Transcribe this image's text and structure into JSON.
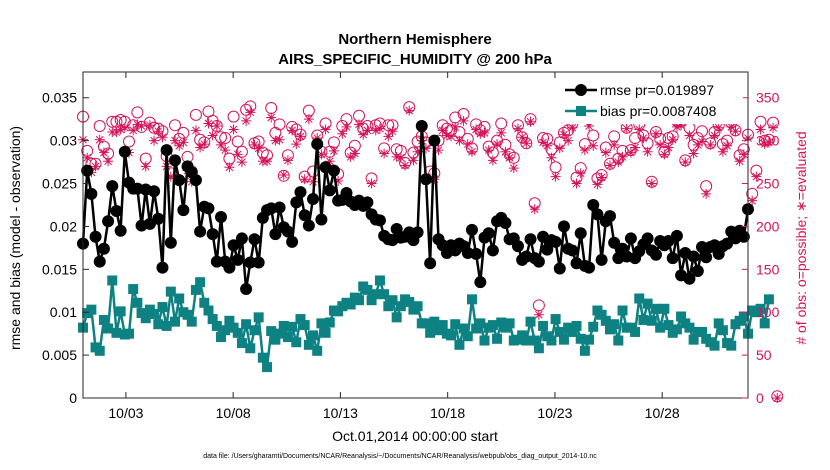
{
  "chart_data": {
    "type": "line",
    "title": "Northern Hemisphere",
    "subtitle": "AIRS_SPECIFIC_HUMIDITY @ 200 hPa",
    "xlabel": "Oct.01,2014 00:00:00 start",
    "ylabel": "rmse and bias (model - observation)",
    "y2label": "# of obs: o=possible; ∗=evaluated",
    "xlim": [
      1.0,
      32.0
    ],
    "ylim": [
      0,
      0.038
    ],
    "y2lim": [
      0,
      380
    ],
    "x_ticks": [
      3,
      8,
      13,
      18,
      23,
      28
    ],
    "x_tick_labels": [
      "10/03",
      "10/08",
      "10/13",
      "10/18",
      "10/23",
      "10/28"
    ],
    "y_ticks": [
      0,
      0.005,
      0.01,
      0.015,
      0.02,
      0.025,
      0.03,
      0.035
    ],
    "y_tick_labels": [
      "0",
      "0.005",
      "0.01",
      "0.015",
      "0.02",
      "0.025",
      "0.03",
      "0.035"
    ],
    "y2_ticks": [
      0,
      50,
      100,
      150,
      200,
      250,
      300,
      350
    ],
    "y2_tick_labels": [
      "0",
      "50",
      "100",
      "150",
      "200",
      "250",
      "300",
      "350"
    ],
    "legend_position": "top-right",
    "colors": {
      "rmse": "#000000",
      "bias": "#0e8282",
      "obs": "#d4145a"
    },
    "series": [
      {
        "name": "rmse pr=0.019897",
        "axis": "left",
        "marker": "circle",
        "values": [
          0.018,
          0.0265,
          0.0238,
          0.0188,
          0.0159,
          0.0174,
          0.0206,
          0.0247,
          0.0218,
          0.0195,
          0.0287,
          0.0251,
          0.0244,
          0.0244,
          0.0201,
          0.0243,
          0.0203,
          0.0241,
          0.0209,
          0.0152,
          0.0289,
          0.0181,
          0.0277,
          0.0254,
          0.0219,
          0.027,
          0.0263,
          0.0254,
          0.0194,
          0.0223,
          0.0221,
          0.0191,
          0.0159,
          0.0211,
          0.0159,
          0.0152,
          0.0178,
          0.0161,
          0.0186,
          0.0127,
          0.0158,
          0.0185,
          0.0158,
          0.021,
          0.0219,
          0.0221,
          0.0191,
          0.0222,
          0.0199,
          0.0194,
          0.0182,
          0.0228,
          0.024,
          0.0213,
          0.0201,
          0.0232,
          0.0296,
          0.0208,
          0.0269,
          0.0242,
          0.0265,
          0.023,
          0.0231,
          0.0239,
          0.0229,
          0.0225,
          0.023,
          0.0224,
          0.0228,
          0.0214,
          0.0208,
          0.0207,
          0.0189,
          0.0185,
          0.0184,
          0.0197,
          0.0187,
          0.0188,
          0.0193,
          0.0184,
          0.0193,
          0.0317,
          0.0255,
          0.0157,
          0.03,
          0.0185,
          0.0178,
          0.0169,
          0.0178,
          0.0172,
          0.018,
          0.0177,
          0.0169,
          0.0196,
          0.0168,
          0.0135,
          0.0187,
          0.0192,
          0.0172,
          0.0206,
          0.021,
          0.0204,
          0.0185,
          0.0186,
          0.0177,
          0.0161,
          0.0165,
          0.0185,
          0.0163,
          0.0159,
          0.0188,
          0.0173,
          0.0184,
          0.0182,
          0.0151,
          0.02,
          0.0174,
          0.0172,
          0.0157,
          0.0192,
          0.0154,
          0.0152,
          0.0225,
          0.0214,
          0.0161,
          0.0206,
          0.0212,
          0.0181,
          0.0163,
          0.0174,
          0.0165,
          0.0186,
          0.0163,
          0.0171,
          0.0179,
          0.0186,
          0.0172,
          0.0167,
          0.0183,
          0.0178,
          0.0183,
          0.0163,
          0.0189,
          0.0143,
          0.0169,
          0.0139,
          0.0165,
          0.0148,
          0.0176,
          0.0164,
          0.0176,
          0.0178,
          0.0168,
          0.0177,
          0.018,
          0.0194,
          0.0186,
          0.0195,
          0.0188,
          0.022
        ]
      },
      {
        "name": "bias pr=0.0087408",
        "axis": "left",
        "marker": "square",
        "values": [
          0.0082,
          0.0099,
          0.0103,
          0.0059,
          0.0055,
          0.0091,
          0.0081,
          0.0137,
          0.0076,
          0.0101,
          0.0074,
          0.0075,
          0.0127,
          0.0111,
          0.0099,
          0.0093,
          0.0103,
          0.0098,
          0.0086,
          0.0106,
          0.0084,
          0.0124,
          0.0089,
          0.0116,
          0.01,
          0.0097,
          0.0089,
          0.0126,
          0.0135,
          0.0111,
          0.0102,
          0.0092,
          0.0084,
          0.0071,
          0.0079,
          0.009,
          0.0082,
          0.0076,
          0.0064,
          0.0086,
          0.0058,
          0.0079,
          0.0094,
          0.0047,
          0.0036,
          0.0078,
          0.0068,
          0.0075,
          0.0084,
          0.0071,
          0.0083,
          0.0065,
          0.0092,
          0.0085,
          0.0062,
          0.0073,
          0.0055,
          0.0087,
          0.0076,
          0.0088,
          0.0102,
          0.0101,
          0.0107,
          0.0111,
          0.0109,
          0.0117,
          0.0114,
          0.013,
          0.0126,
          0.0114,
          0.0121,
          0.0137,
          0.0121,
          0.0107,
          0.0114,
          0.0094,
          0.0107,
          0.0115,
          0.0112,
          0.0103,
          0.0107,
          0.0087,
          0.0087,
          0.0076,
          0.0089,
          0.0079,
          0.0085,
          0.0075,
          0.0073,
          0.0086,
          0.0062,
          0.0081,
          0.0072,
          0.0115,
          0.0081,
          0.0087,
          0.0067,
          0.0082,
          0.0085,
          0.0069,
          0.0088,
          0.0082,
          0.0087,
          0.0067,
          0.0068,
          0.0073,
          0.0067,
          0.0089,
          0.0067,
          0.0058,
          0.0084,
          0.0072,
          0.0067,
          0.0092,
          0.0077,
          0.0068,
          0.0082,
          0.0077,
          0.0084,
          0.0069,
          0.0055,
          0.0068,
          0.0083,
          0.0102,
          0.0097,
          0.009,
          0.008,
          0.0086,
          0.0067,
          0.0102,
          0.0082,
          0.0082,
          0.0077,
          0.0116,
          0.0091,
          0.011,
          0.009,
          0.0104,
          0.0082,
          0.0104,
          0.0085,
          0.0076,
          0.008,
          0.0095,
          0.0087,
          0.0082,
          0.0068,
          0.0077,
          0.0077,
          0.0069,
          0.0065,
          0.0061,
          0.0087,
          0.0079,
          0.0064,
          0.0061,
          0.0086,
          0.009,
          0.0095,
          0.0075,
          0.0102,
          0.01,
          0.0104,
          0.0087,
          0.0115
        ]
      },
      {
        "name": "# of obs possible",
        "axis": "right",
        "marker": "o",
        "values": [
          328,
          288,
          273,
          273,
          317,
          293,
          285,
          322,
          322,
          324,
          322,
          299,
          318,
          333,
          316,
          279,
          321,
          315,
          314,
          311,
          282,
          262,
          318,
          302,
          309,
          281,
          264,
          330,
          301,
          298,
          334,
          323,
          317,
          304,
          303,
          279,
          328,
          299,
          287,
          336,
          340,
          297,
          299,
          286,
          283,
          338,
          309,
          319,
          259,
          283,
          316,
          313,
          307,
          258,
          335,
          264,
          306,
          287,
          320,
          287,
          298,
          261,
          317,
          325,
          286,
          294,
          329,
          314,
          317,
          256,
          318,
          320,
          291,
          318,
          318,
          290,
          288,
          274,
          339,
          286,
          299,
          305,
          298,
          264,
          262,
          300,
          318,
          314,
          312,
          327,
          310,
          331,
          302,
          291,
          319,
          312,
          316,
          293,
          286,
          300,
          320,
          295,
          284,
          280,
          318,
          304,
          297,
          325,
          227,
          108,
          303,
          302,
          290,
          269,
          298,
          309,
          312,
          320,
          257,
          268,
          296,
          325,
          306,
          256,
          260,
          292,
          273,
          305,
          279,
          288,
          315,
          289,
          303,
          319,
          306,
          297,
          252,
          310,
          302,
          287,
          303,
          305,
          323,
          322,
          277,
          315,
          295,
          303,
          311,
          247,
          297,
          310,
          318,
          296,
          300,
          321,
          312,
          283,
          290,
          307,
          238,
          265,
          322,
          300,
          301,
          321,
          2
        ]
      },
      {
        "name": "# of obs evaluated",
        "axis": "right",
        "marker": "*",
        "values": [
          301,
          280,
          263,
          270,
          301,
          286,
          276,
          310,
          310,
          313,
          315,
          286,
          312,
          319,
          317,
          270,
          318,
          300,
          311,
          304,
          270,
          258,
          300,
          294,
          298,
          265,
          252,
          312,
          292,
          296,
          320,
          306,
          317,
          295,
          289,
          269,
          313,
          284,
          275,
          323,
          333,
          295,
          291,
          276,
          276,
          327,
          300,
          301,
          260,
          277,
          312,
          296,
          305,
          255,
          325,
          252,
          303,
          284,
          313,
          276,
          288,
          253,
          308,
          316,
          281,
          285,
          319,
          307,
          312,
          250,
          312,
          314,
          285,
          305,
          311,
          281,
          280,
          271,
          335,
          277,
          287,
          300,
          291,
          256,
          255,
          289,
          312,
          306,
          305,
          316,
          300,
          323,
          296,
          287,
          313,
          308,
          309,
          289,
          277,
          296,
          309,
          287,
          280,
          268,
          314,
          304,
          297,
          322,
          220,
          97,
          298,
          294,
          280,
          258,
          291,
          307,
          300,
          315,
          250,
          262,
          289,
          317,
          294,
          249,
          257,
          286,
          271,
          295,
          275,
          281,
          314,
          286,
          292,
          313,
          303,
          287,
          250,
          308,
          295,
          284,
          292,
          301,
          316,
          318,
          275,
          306,
          285,
          295,
          299,
          238,
          295,
          306,
          315,
          287,
          294,
          316,
          311,
          276,
          284,
          303,
          230,
          258,
          313,
          296,
          298,
          315,
          0
        ]
      }
    ]
  },
  "footer": {
    "data_file": "data file: /Users/gharamti/Documents/NCAR/Reanalysis/~/Documents/NCAR/Reanalysis/webpub/obs_diag_output_2014-10.nc"
  }
}
